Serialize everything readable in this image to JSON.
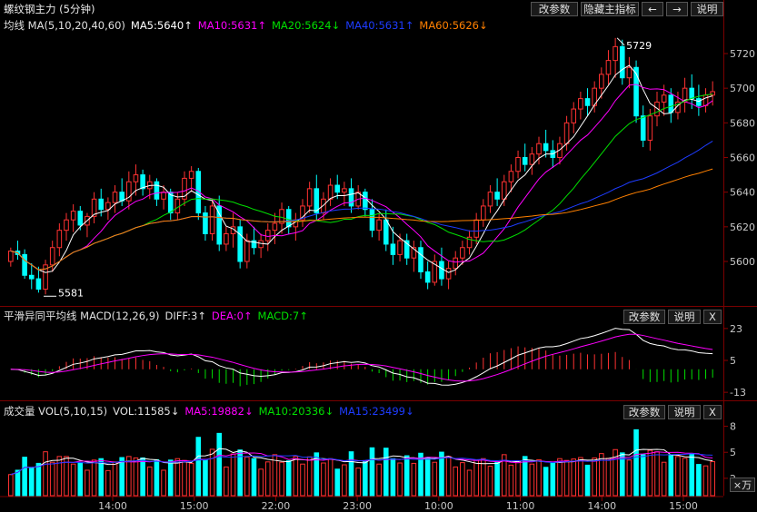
{
  "title": "螺纹钢主力 (5分钟)",
  "toolbar": {
    "params": "改参数",
    "hide_indicator": "隐藏主指标",
    "left": "←",
    "right": "→",
    "help": "说明"
  },
  "ma_header": {
    "name": "均线 MA(5,10,20,40,60)",
    "ma5": "MA5:5640↑",
    "ma10": "MA10:5631↑",
    "ma20": "MA20:5624↓",
    "ma40": "MA40:5631↑",
    "ma60": "MA60:5626↓"
  },
  "macd_header": {
    "name": "平滑异同平均线 MACD(12,26,9)",
    "diff": "DIFF:3↑",
    "dea": "DEA:0↑",
    "macd": "MACD:7↑"
  },
  "vol_header": {
    "name": "成交量 VOL(5,10,15)",
    "vol": "VOL:11585↓",
    "ma5": "MA5:19882↓",
    "ma10": "MA10:20336↓",
    "ma15": "MA15:23499↓"
  },
  "panel_buttons": {
    "params": "改参数",
    "help": "说明",
    "close": "X"
  },
  "vol_unit": "×万",
  "colors": {
    "up": "#ff3232",
    "down": "#00ffff",
    "ma5": "#ffffff",
    "ma10": "#ff00ff",
    "ma20": "#00e000",
    "ma40": "#1e3cff",
    "ma60": "#ff8000",
    "axis": "#8c0000"
  },
  "chart_data": [
    {
      "type": "candlestick",
      "annotations": [
        {
          "label": "5729"
        },
        {
          "label": "5581"
        }
      ],
      "y_ticks": [
        5720,
        5700,
        5680,
        5660,
        5640,
        5620,
        5600
      ],
      "ylim": [
        5578,
        5731
      ],
      "x_tick_labels": [
        "14:00",
        "15:00",
        "22:00",
        "23:00",
        "10:00",
        "11:00",
        "14:00",
        "15:00"
      ],
      "candles": [
        [
          5600,
          5608,
          5597,
          5606
        ],
        [
          5606,
          5612,
          5601,
          5604
        ],
        [
          5604,
          5607,
          5590,
          5592
        ],
        [
          5592,
          5599,
          5584,
          5590
        ],
        [
          5590,
          5597,
          5582,
          5584
        ],
        [
          5584,
          5601,
          5581,
          5598
        ],
        [
          5598,
          5612,
          5594,
          5608
        ],
        [
          5608,
          5622,
          5603,
          5618
        ],
        [
          5618,
          5628,
          5612,
          5624
        ],
        [
          5624,
          5633,
          5617,
          5629
        ],
        [
          5629,
          5632,
          5618,
          5621
        ],
        [
          5621,
          5628,
          5614,
          5626
        ],
        [
          5626,
          5640,
          5622,
          5636
        ],
        [
          5636,
          5642,
          5626,
          5630
        ],
        [
          5630,
          5637,
          5624,
          5634
        ],
        [
          5634,
          5644,
          5628,
          5640
        ],
        [
          5640,
          5648,
          5632,
          5635
        ],
        [
          5635,
          5652,
          5630,
          5646
        ],
        [
          5646,
          5656,
          5638,
          5650
        ],
        [
          5650,
          5653,
          5638,
          5642
        ],
        [
          5642,
          5650,
          5636,
          5646
        ],
        [
          5646,
          5648,
          5632,
          5636
        ],
        [
          5636,
          5644,
          5630,
          5640
        ],
        [
          5640,
          5642,
          5624,
          5628
        ],
        [
          5628,
          5640,
          5624,
          5636
        ],
        [
          5636,
          5652,
          5632,
          5648
        ],
        [
          5648,
          5655,
          5640,
          5652
        ],
        [
          5652,
          5654,
          5624,
          5628
        ],
        [
          5628,
          5632,
          5612,
          5616
        ],
        [
          5616,
          5636,
          5612,
          5632
        ],
        [
          5632,
          5638,
          5606,
          5610
        ],
        [
          5610,
          5620,
          5606,
          5616
        ],
        [
          5616,
          5628,
          5608,
          5620
        ],
        [
          5620,
          5624,
          5596,
          5600
        ],
        [
          5600,
          5616,
          5596,
          5612
        ],
        [
          5612,
          5620,
          5604,
          5608
        ],
        [
          5608,
          5616,
          5602,
          5612
        ],
        [
          5612,
          5622,
          5606,
          5618
        ],
        [
          5618,
          5628,
          5610,
          5622
        ],
        [
          5622,
          5634,
          5616,
          5630
        ],
        [
          5630,
          5632,
          5616,
          5620
        ],
        [
          5620,
          5628,
          5612,
          5624
        ],
        [
          5624,
          5636,
          5620,
          5632
        ],
        [
          5632,
          5646,
          5628,
          5642
        ],
        [
          5642,
          5650,
          5624,
          5628
        ],
        [
          5628,
          5640,
          5624,
          5636
        ],
        [
          5636,
          5648,
          5632,
          5644
        ],
        [
          5644,
          5650,
          5636,
          5640
        ],
        [
          5640,
          5646,
          5632,
          5642
        ],
        [
          5642,
          5648,
          5628,
          5632
        ],
        [
          5632,
          5644,
          5630,
          5640
        ],
        [
          5640,
          5642,
          5626,
          5630
        ],
        [
          5630,
          5636,
          5614,
          5618
        ],
        [
          5618,
          5628,
          5612,
          5624
        ],
        [
          5624,
          5630,
          5606,
          5610
        ],
        [
          5610,
          5620,
          5598,
          5604
        ],
        [
          5604,
          5616,
          5600,
          5612
        ],
        [
          5612,
          5616,
          5598,
          5602
        ],
        [
          5602,
          5612,
          5594,
          5608
        ],
        [
          5608,
          5612,
          5590,
          5594
        ],
        [
          5594,
          5600,
          5584,
          5588
        ],
        [
          5588,
          5604,
          5586,
          5600
        ],
        [
          5600,
          5608,
          5586,
          5590
        ],
        [
          5590,
          5600,
          5584,
          5596
        ],
        [
          5596,
          5606,
          5592,
          5602
        ],
        [
          5602,
          5612,
          5598,
          5608
        ],
        [
          5608,
          5618,
          5604,
          5614
        ],
        [
          5614,
          5628,
          5610,
          5624
        ],
        [
          5624,
          5636,
          5620,
          5632
        ],
        [
          5632,
          5644,
          5628,
          5640
        ],
        [
          5640,
          5648,
          5632,
          5636
        ],
        [
          5636,
          5650,
          5632,
          5646
        ],
        [
          5646,
          5656,
          5640,
          5652
        ],
        [
          5652,
          5664,
          5648,
          5660
        ],
        [
          5660,
          5668,
          5652,
          5656
        ],
        [
          5656,
          5666,
          5650,
          5662
        ],
        [
          5662,
          5672,
          5656,
          5668
        ],
        [
          5668,
          5676,
          5660,
          5664
        ],
        [
          5664,
          5670,
          5654,
          5660
        ],
        [
          5660,
          5672,
          5656,
          5668
        ],
        [
          5668,
          5684,
          5664,
          5680
        ],
        [
          5680,
          5692,
          5674,
          5688
        ],
        [
          5688,
          5698,
          5682,
          5694
        ],
        [
          5694,
          5700,
          5684,
          5690
        ],
        [
          5690,
          5704,
          5686,
          5700
        ],
        [
          5700,
          5712,
          5694,
          5708
        ],
        [
          5708,
          5722,
          5702,
          5716
        ],
        [
          5716,
          5729,
          5706,
          5724
        ],
        [
          5724,
          5728,
          5702,
          5706
        ],
        [
          5706,
          5718,
          5700,
          5712
        ],
        [
          5712,
          5716,
          5680,
          5684
        ],
        [
          5684,
          5690,
          5666,
          5670
        ],
        [
          5670,
          5688,
          5664,
          5684
        ],
        [
          5684,
          5698,
          5678,
          5692
        ],
        [
          5692,
          5702,
          5684,
          5696
        ],
        [
          5696,
          5700,
          5680,
          5686
        ],
        [
          5686,
          5698,
          5682,
          5692
        ],
        [
          5692,
          5706,
          5686,
          5700
        ],
        [
          5700,
          5708,
          5688,
          5694
        ],
        [
          5694,
          5702,
          5684,
          5690
        ],
        [
          5690,
          5700,
          5686,
          5696
        ],
        [
          5696,
          5704,
          5690,
          5698
        ]
      ]
    },
    {
      "type": "bar",
      "name": "MACD",
      "y_ticks": [
        23,
        5,
        -13
      ],
      "ylim": [
        -16,
        26
      ]
    },
    {
      "type": "bar",
      "name": "VOL",
      "y_ticks": [
        8,
        5,
        2
      ],
      "ylim": [
        0,
        9
      ]
    }
  ]
}
